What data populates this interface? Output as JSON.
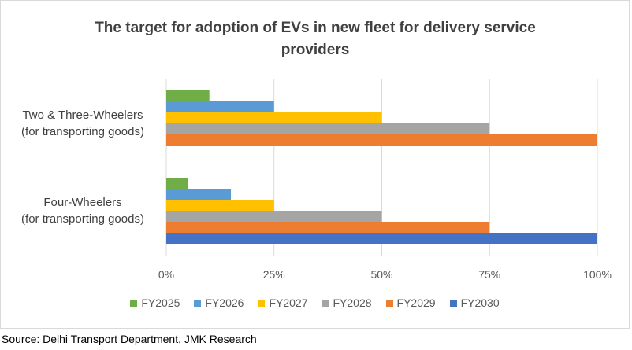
{
  "chart_data": {
    "type": "bar",
    "orientation": "horizontal",
    "title": "The target for adoption of EVs in new fleet for delivery service providers",
    "categories": [
      {
        "line1": "Two & Three-Wheelers",
        "line2": "(for transporting goods)"
      },
      {
        "line1": "Four-Wheelers",
        "line2": "(for transporting goods)"
      }
    ],
    "series": [
      {
        "name": "FY2025",
        "color": "#70ad47",
        "values": [
          10,
          5
        ]
      },
      {
        "name": "FY2026",
        "color": "#5b9bd5",
        "values": [
          25,
          15
        ]
      },
      {
        "name": "FY2027",
        "color": "#ffc000",
        "values": [
          50,
          25
        ]
      },
      {
        "name": "FY2028",
        "color": "#a5a5a5",
        "values": [
          75,
          50
        ]
      },
      {
        "name": "FY2029",
        "color": "#ed7d31",
        "values": [
          100,
          75
        ]
      },
      {
        "name": "FY2030",
        "color": "#4472c4",
        "values": [
          null,
          100
        ]
      }
    ],
    "xlim": [
      0,
      100
    ],
    "xticks": [
      "0%",
      "25%",
      "50%",
      "75%",
      "100%"
    ],
    "grid": true,
    "legend_position": "bottom"
  },
  "source": "Source: Delhi Transport Department, JMK Research"
}
